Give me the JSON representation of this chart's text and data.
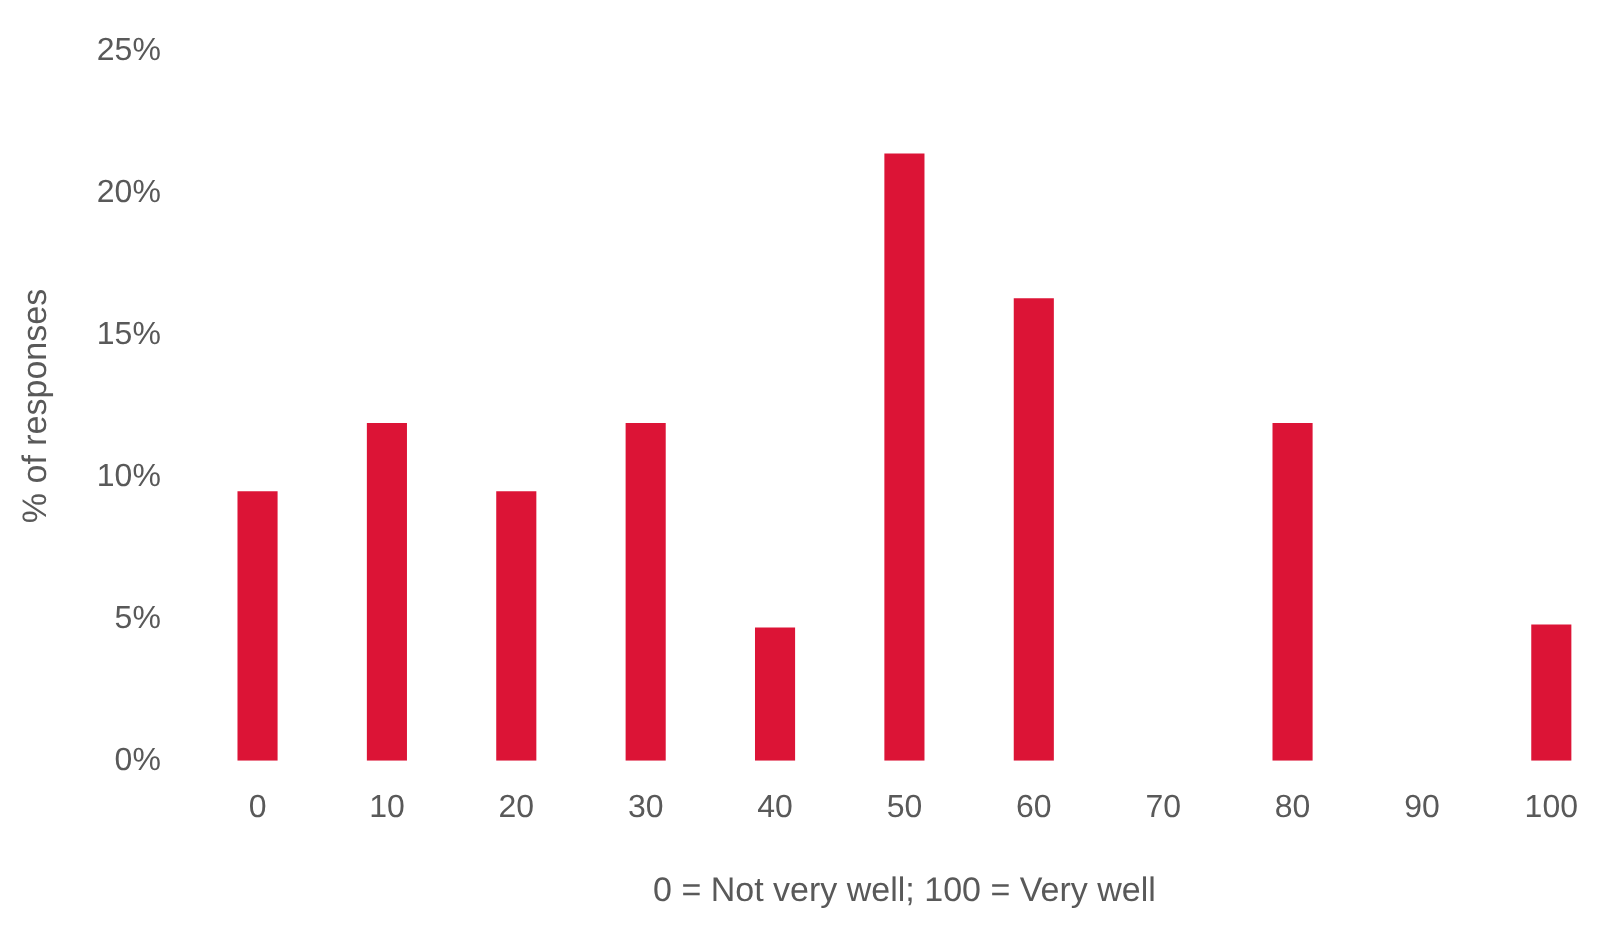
{
  "chart_data": {
    "type": "bar",
    "xlabel": "0 = Not very well; 100 = Very well",
    "ylabel": "% of responses",
    "categories": [
      "0",
      "10",
      "20",
      "30",
      "40",
      "50",
      "60",
      "70",
      "80",
      "90",
      "100"
    ],
    "values": [
      9.5,
      11.9,
      9.5,
      11.9,
      4.7,
      21.4,
      16.3,
      0,
      11.9,
      0,
      4.8
    ],
    "color": "#dc1436",
    "ylim": [
      0,
      25
    ],
    "yticks": [
      {
        "value": 0,
        "label": "0%"
      },
      {
        "value": 5,
        "label": "5%"
      },
      {
        "value": 10,
        "label": "10%"
      },
      {
        "value": 15,
        "label": "15%"
      },
      {
        "value": 20,
        "label": "20%"
      },
      {
        "value": 25,
        "label": "25%"
      }
    ],
    "grid": false,
    "legend": false
  }
}
